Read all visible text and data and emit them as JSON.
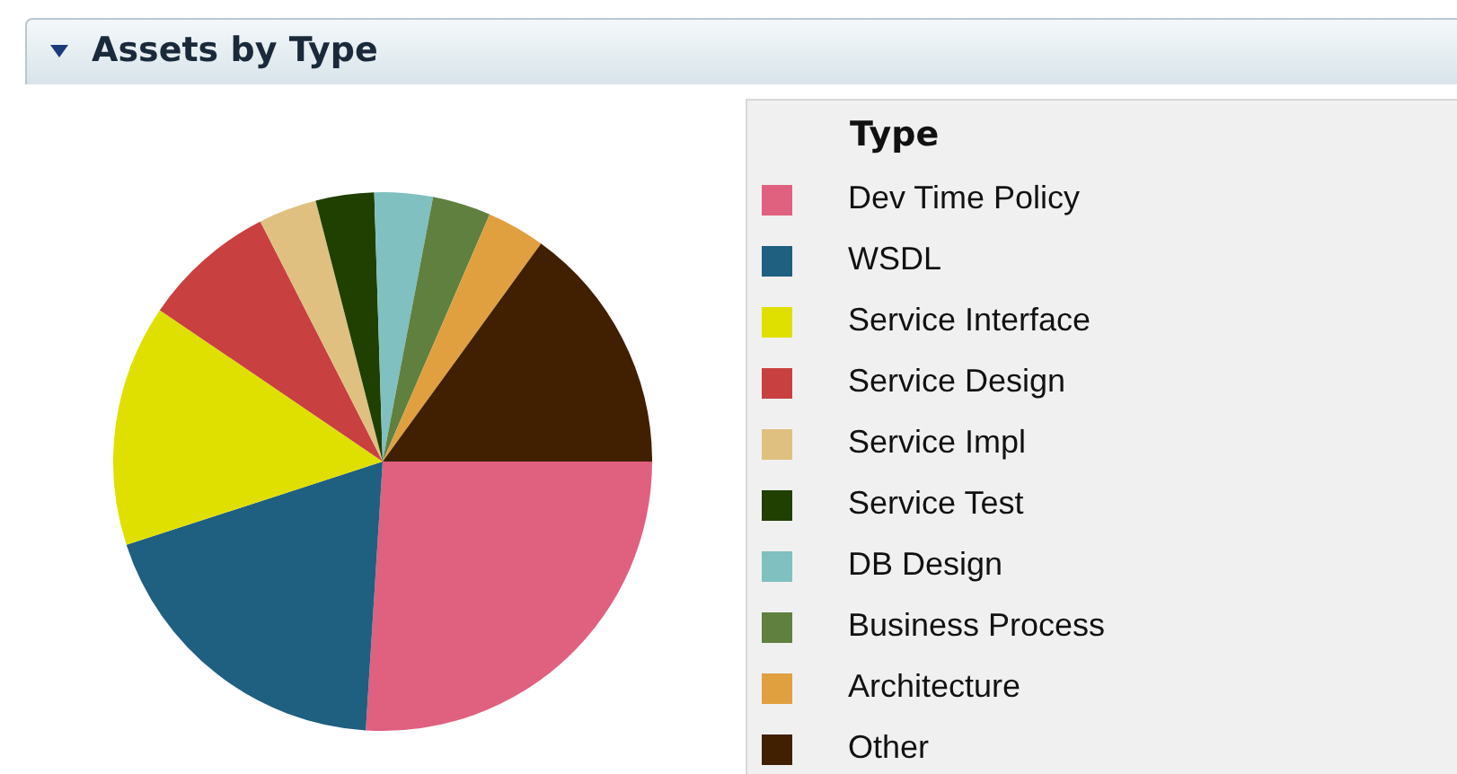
{
  "chart_data": {
    "type": "pie",
    "title": "Assets by Type",
    "legend_title": "Type",
    "legend": "right",
    "categories": [
      "Dev Time Policy",
      "WSDL",
      "Service Interface",
      "Service Design",
      "Service Impl",
      "Service Test",
      "DB Design",
      "Business Process",
      "Architecture",
      "Other"
    ],
    "values": [
      26,
      19,
      14.5,
      8,
      3.5,
      3.5,
      3.5,
      3.5,
      3.5,
      15
    ],
    "colors": [
      "#e06080",
      "#1f5f80",
      "#e0e000",
      "#c84040",
      "#e0c080",
      "#1f4000",
      "#80c0c0",
      "#608040",
      "#e0a040",
      "#402000"
    ]
  }
}
